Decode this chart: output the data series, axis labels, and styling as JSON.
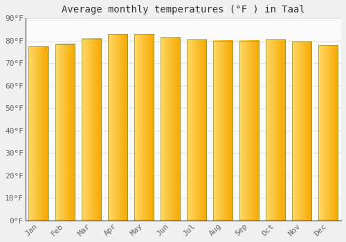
{
  "title": "Average monthly temperatures (°F ) in Taal",
  "months": [
    "Jan",
    "Feb",
    "Mar",
    "Apr",
    "May",
    "Jun",
    "Jul",
    "Aug",
    "Sep",
    "Oct",
    "Nov",
    "Dec"
  ],
  "values": [
    77.5,
    78.5,
    81.0,
    83.0,
    83.0,
    81.5,
    80.5,
    80.0,
    80.0,
    80.5,
    79.5,
    78.0
  ],
  "bar_color_left": "#FFD966",
  "bar_color_right": "#F5A800",
  "bar_edge_color": "#888844",
  "ylim": [
    0,
    90
  ],
  "yticks": [
    0,
    10,
    20,
    30,
    40,
    50,
    60,
    70,
    80,
    90
  ],
  "background_color": "#F0F0F0",
  "plot_bg_color": "#FAFAFA",
  "grid_color": "#E0E0E0",
  "title_fontsize": 10,
  "tick_fontsize": 8,
  "bar_width": 0.75
}
